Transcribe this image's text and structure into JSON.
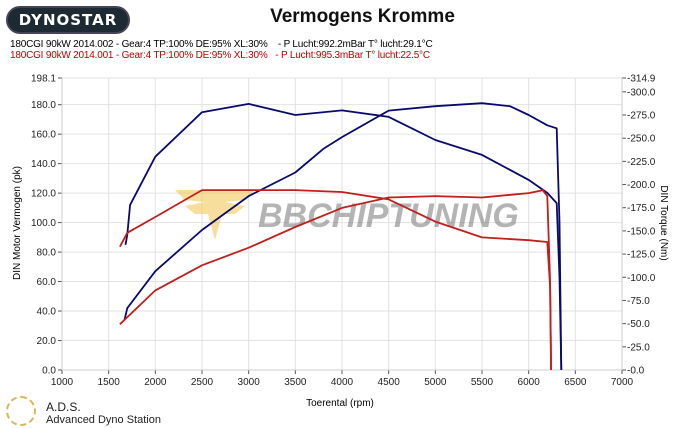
{
  "logo_text": "DYNOSTAR",
  "title": "Vermogens Kromme",
  "legend": [
    {
      "text": "180CGI 90kW 2014.002 - Gear:4 TP:100% DE:95% XL:30%    - P Lucht:992.2mBar T° lucht:29.1°C",
      "color": "#000000"
    },
    {
      "text": "180CGI 90kW 2014.001 - Gear:4 TP:100% DE:95% XL:30%   - P Lucht:995.3mBar T° lucht:22.5°C",
      "color": "#c00000"
    }
  ],
  "watermark": "BBCHIPTUNING",
  "footer": {
    "name": "A.D.S.",
    "subtitle": "Advanced Dyno Station"
  },
  "chart_data": {
    "type": "line",
    "title": "Vermogens Kromme",
    "xlabel": "Toerental (rpm)",
    "ylabel": "DIN Motor Vermogen (pk)",
    "y2label": "DIN Torque (Nm)",
    "xlim": [
      1000,
      7000
    ],
    "ylim": [
      0,
      198.1
    ],
    "y2lim": [
      0,
      314.9
    ],
    "grid": true,
    "x_ticks": [
      "1000",
      "1500",
      "2000",
      "2500",
      "3000",
      "3500",
      "4000",
      "4500",
      "5000",
      "5500",
      "6000",
      "6500",
      "7000"
    ],
    "y_ticks": [
      "0.0",
      "20.0",
      "40.0",
      "60.0",
      "80.0",
      "100.0",
      "120.0",
      "140.0",
      "160.0",
      "180.0",
      "198.1"
    ],
    "y2_ticks": [
      "-0.0",
      "-25.0",
      "-50.0",
      "-75.0",
      "-100.0",
      "-125.0",
      "-150.0",
      "-175.0",
      "-200.0",
      "-225.0",
      "-250.0",
      "-275.0",
      "-300.0",
      "-314.9"
    ],
    "colors": {
      "run_002": "#0a0a6e",
      "run_001": "#c0201c"
    },
    "series": [
      {
        "run": "002",
        "axis": "left",
        "color": "#0a0a6e",
        "x": [
          1670,
          1700,
          2000,
          2500,
          3000,
          3500,
          3800,
          4000,
          4500,
          5000,
          5500,
          5800,
          6000,
          6200,
          6300,
          6330,
          6350
        ],
        "y": [
          34,
          42,
          67,
          95,
          118,
          134,
          150,
          158,
          176,
          179,
          181,
          179,
          173,
          166,
          164,
          100,
          0
        ]
      },
      {
        "run": "002",
        "axis": "right",
        "color": "#0a0a6e",
        "x": [
          1680,
          1700,
          1730,
          2000,
          2500,
          3000,
          3500,
          4000,
          4500,
          5000,
          5500,
          6000,
          6200,
          6300,
          6330,
          6350
        ],
        "y": [
          135,
          146,
          178,
          230,
          278,
          287,
          275,
          280,
          273,
          248,
          232,
          205,
          191,
          180,
          100,
          0
        ]
      },
      {
        "run": "001",
        "axis": "left",
        "color": "#c0201c",
        "x": [
          1620,
          2000,
          2500,
          3000,
          3500,
          4000,
          4500,
          5000,
          5500,
          6000,
          6150,
          6200,
          6230,
          6240
        ],
        "y": [
          31,
          54,
          71,
          83,
          97,
          110,
          117,
          118,
          117,
          120,
          122,
          118,
          60,
          0
        ]
      },
      {
        "run": "001",
        "axis": "right",
        "color": "#c0201c",
        "x": [
          1620,
          1700,
          2000,
          2500,
          3000,
          3500,
          4000,
          4500,
          5000,
          5500,
          6000,
          6200,
          6230,
          6240
        ],
        "y": [
          133,
          148,
          165,
          194,
          194,
          194,
          192,
          184,
          160,
          143,
          140,
          138,
          90,
          0
        ]
      }
    ]
  }
}
